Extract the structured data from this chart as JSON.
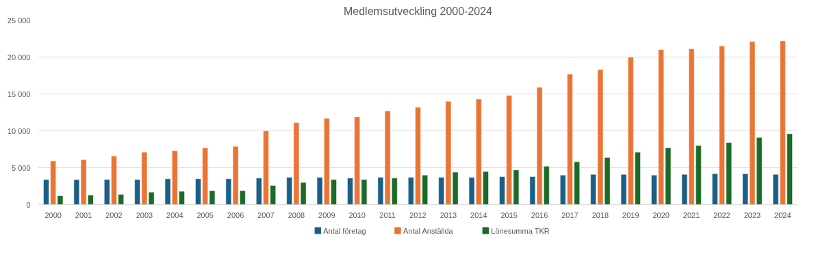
{
  "chart_data": {
    "type": "bar",
    "title": "Medlemsutveckling 2000-2024",
    "categories": [
      "2000",
      "2001",
      "2002",
      "2003",
      "2004",
      "2005",
      "2006",
      "2007",
      "2008",
      "2009",
      "2010",
      "2011",
      "2012",
      "2013",
      "2014",
      "2015",
      "2016",
      "2017",
      "2018",
      "2019",
      "2020",
      "2021",
      "2022",
      "2023",
      "2024"
    ],
    "series": [
      {
        "name": "Antal företag",
        "color": "#1a5f86",
        "values": [
          3400,
          3400,
          3400,
          3400,
          3500,
          3500,
          3500,
          3600,
          3700,
          3700,
          3600,
          3700,
          3700,
          3700,
          3700,
          3800,
          3800,
          4000,
          4100,
          4100,
          4000,
          4100,
          4200,
          4200,
          4100
        ]
      },
      {
        "name": "Antal Anställda",
        "color": "#eb7434",
        "values": [
          5900,
          6100,
          6600,
          7100,
          7300,
          7700,
          7900,
          10000,
          11100,
          11700,
          11900,
          12700,
          13200,
          14000,
          14300,
          14800,
          15900,
          17700,
          18300,
          20000,
          21000,
          21100,
          21500,
          22100,
          22200
        ]
      },
      {
        "name": "Lönesumma TKR",
        "color": "#1b6b27",
        "values": [
          1200,
          1300,
          1400,
          1700,
          1800,
          1900,
          1900,
          2600,
          3000,
          3400,
          3400,
          3600,
          4000,
          4400,
          4500,
          4700,
          5200,
          5800,
          6400,
          7100,
          7700,
          8000,
          8400,
          9100,
          9600
        ]
      }
    ],
    "ylim": [
      0,
      25000
    ],
    "yticks": [
      {
        "value": 0,
        "label": "0"
      },
      {
        "value": 5000,
        "label": "5 000"
      },
      {
        "value": 10000,
        "label": "10 000"
      },
      {
        "value": 15000,
        "label": "15 000"
      },
      {
        "value": 20000,
        "label": "20 000"
      },
      {
        "value": 25000,
        "label": "25 000"
      }
    ],
    "grid": "y",
    "legend": "bottom"
  }
}
